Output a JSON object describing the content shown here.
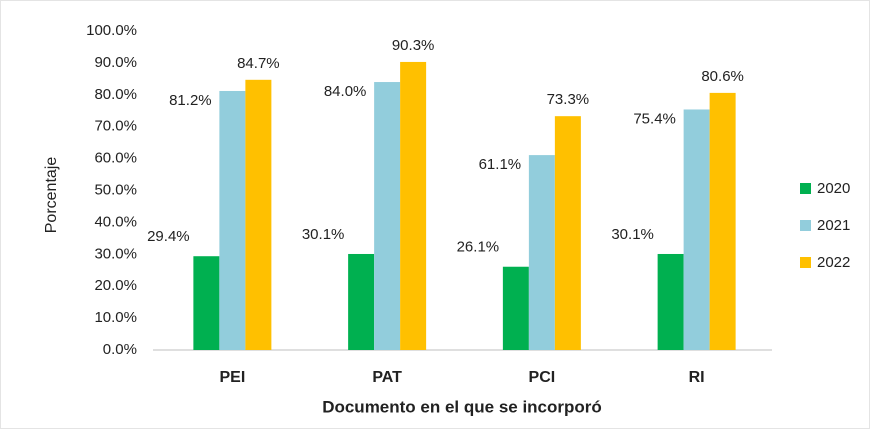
{
  "chart_data": {
    "type": "bar",
    "categories": [
      "PEI",
      "PAT",
      "PCI",
      "RI"
    ],
    "series": [
      {
        "name": "2020",
        "color": "#00b050",
        "values": [
          29.4,
          30.1,
          26.1,
          30.1
        ],
        "value_labels": [
          "29.4%",
          "30.1%",
          "26.1%",
          "30.1%"
        ]
      },
      {
        "name": "2021",
        "color": "#92cddc",
        "values": [
          81.2,
          84.0,
          61.1,
          75.4
        ],
        "value_labels": [
          "81.2%",
          "84.0%",
          "61.1%",
          "75.4%"
        ]
      },
      {
        "name": "2022",
        "color": "#ffc000",
        "values": [
          84.7,
          90.3,
          73.3,
          80.6
        ],
        "value_labels": [
          "84.7%",
          "90.3%",
          "73.3%",
          "80.6%"
        ]
      }
    ],
    "y_label": "Porcentaje",
    "x_label": "Documento en el que se incorporó",
    "ylim": [
      0,
      100
    ],
    "yticks": [
      {
        "value": 0,
        "label": "0.0%"
      },
      {
        "value": 10,
        "label": "10.0%"
      },
      {
        "value": 20,
        "label": "20.0%"
      },
      {
        "value": 30,
        "label": "30.0%"
      },
      {
        "value": 40,
        "label": "40.0%"
      },
      {
        "value": 50,
        "label": "50.0%"
      },
      {
        "value": 60,
        "label": "60.0%"
      },
      {
        "value": 70,
        "label": "70.0%"
      },
      {
        "value": 80,
        "label": "80.0%"
      },
      {
        "value": 90,
        "label": "90.0%"
      },
      {
        "value": 100,
        "label": "100.0%"
      }
    ],
    "grid": false,
    "legend": "right"
  }
}
